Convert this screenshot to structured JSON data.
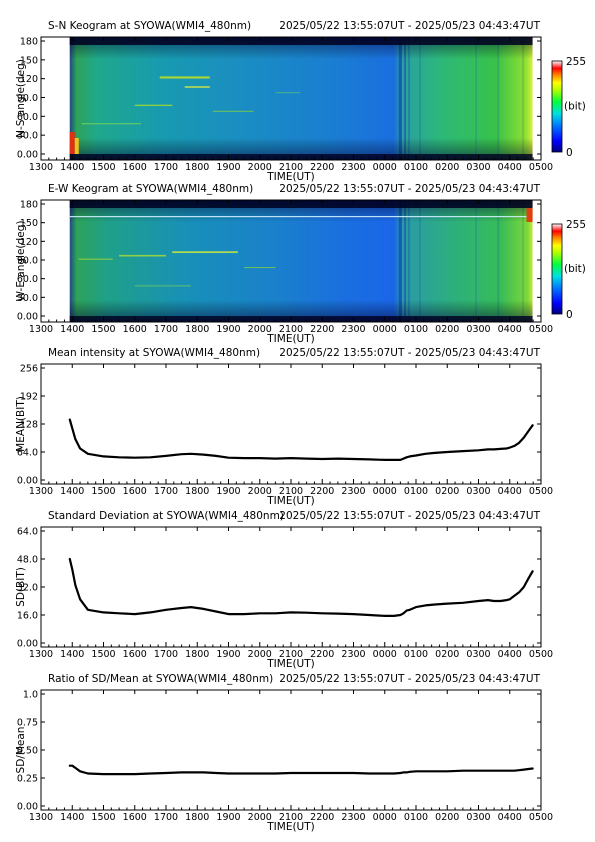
{
  "x_axis": {
    "label": "TIME(UT)",
    "ticks": [
      "1300",
      "1400",
      "1500",
      "1600",
      "1700",
      "1800",
      "1900",
      "2000",
      "2100",
      "2200",
      "2300",
      "0000",
      "0100",
      "0200",
      "0300",
      "0400",
      "0500"
    ]
  },
  "colorbar": {
    "max_label": "255",
    "unit_label": "(bit)",
    "min_label": "0"
  },
  "chart_data": [
    {
      "type": "heatmap",
      "title": "S-N Keogram at SYOWA(WMI4_480nm)",
      "time_range": "2025/05/22 13:55:07UT - 2025/05/23 04:43:47UT",
      "ylabel": "N-S angle(deg)",
      "yticks": [
        "0.00",
        "30.0",
        "60.0",
        "90.0",
        "120",
        "150",
        "180"
      ],
      "ylim": [
        0,
        180
      ],
      "xlabel": "TIME(UT)",
      "colorbar": [
        0,
        255
      ]
    },
    {
      "type": "heatmap",
      "title": "E-W Keogram at SYOWA(WMI4_480nm)",
      "time_range": "2025/05/22 13:55:07UT - 2025/05/23 04:43:47UT",
      "ylabel": "W-E angle(deg)",
      "yticks": [
        "0.00",
        "30.0",
        "60.0",
        "90.0",
        "120",
        "150",
        "180"
      ],
      "ylim": [
        0,
        180
      ],
      "xlabel": "TIME(UT)",
      "colorbar": [
        0,
        255
      ]
    },
    {
      "type": "line",
      "title": "Mean intensity at SYOWA(WMI4_480nm)",
      "time_range": "2025/05/22 13:55:07UT - 2025/05/23 04:43:47UT",
      "ylabel": "MEAN(BIT)",
      "xlabel": "TIME(UT)",
      "yticks": [
        "0.00",
        "64.0",
        "128",
        "192",
        "256"
      ],
      "ylim": [
        0,
        256
      ],
      "x": [
        13.92,
        14.0,
        14.1,
        14.25,
        14.5,
        15.0,
        15.5,
        16.0,
        16.5,
        17.0,
        17.5,
        17.8,
        18.2,
        18.6,
        19.0,
        19.5,
        20.0,
        20.5,
        21.0,
        21.5,
        22.0,
        22.5,
        23.0,
        23.5,
        24.0,
        24.3,
        24.5,
        24.6,
        24.7,
        24.8,
        25.0,
        25.3,
        25.6,
        26.0,
        26.5,
        27.0,
        27.3,
        27.5,
        27.7,
        27.9,
        28.0,
        28.15,
        28.3,
        28.45,
        28.6,
        28.73
      ],
      "y": [
        138,
        118,
        93,
        72,
        60,
        54,
        52,
        51,
        52,
        55,
        59,
        60,
        58,
        55,
        51,
        50,
        50,
        49,
        50,
        49,
        48,
        49,
        48,
        47,
        46,
        46,
        46,
        49,
        52,
        54,
        56,
        60,
        62,
        64,
        66,
        68,
        70,
        70,
        71,
        72,
        74,
        78,
        85,
        97,
        112,
        125
      ]
    },
    {
      "type": "line",
      "title": "Standard Deviation at SYOWA(WMI4_480nm)",
      "time_range": "2025/05/22 13:55:07UT - 2025/05/23 04:43:47UT",
      "ylabel": "SD(BIT)",
      "xlabel": "TIME(UT)",
      "yticks": [
        "0.00",
        "16.0",
        "32.0",
        "48.0",
        "64.0"
      ],
      "ylim": [
        0,
        64
      ],
      "x": [
        13.92,
        14.0,
        14.1,
        14.25,
        14.5,
        15.0,
        15.5,
        16.0,
        16.5,
        17.0,
        17.5,
        17.8,
        18.2,
        18.6,
        19.0,
        19.5,
        20.0,
        20.5,
        21.0,
        21.5,
        22.0,
        22.5,
        23.0,
        23.5,
        24.0,
        24.3,
        24.5,
        24.6,
        24.7,
        24.8,
        25.0,
        25.3,
        25.6,
        26.0,
        26.5,
        27.0,
        27.3,
        27.5,
        27.7,
        27.9,
        28.0,
        28.15,
        28.3,
        28.45,
        28.6,
        28.73
      ],
      "y": [
        48,
        42,
        33,
        25,
        19,
        17.5,
        17,
        16.5,
        17.5,
        19,
        20,
        20.5,
        19.5,
        18,
        16.5,
        16.5,
        17,
        17,
        17.5,
        17.3,
        17,
        16.8,
        16.5,
        16,
        15.5,
        15.5,
        16,
        17,
        18.5,
        19,
        20.5,
        21.5,
        22,
        22.5,
        23,
        24,
        24.5,
        24,
        24,
        24.5,
        25,
        27,
        29,
        32,
        37,
        41
      ]
    },
    {
      "type": "line",
      "title": "Ratio of SD/Mean at SYOWA(WMI4_480nm)",
      "time_range": "2025/05/22 13:55:07UT - 2025/05/23 04:43:47UT",
      "ylabel": "SD/Mean",
      "xlabel": "TIME(UT)",
      "yticks": [
        "0.00",
        "0.25",
        "0.50",
        "0.75",
        "1.0"
      ],
      "ylim": [
        0,
        1
      ],
      "x": [
        13.92,
        14.0,
        14.1,
        14.25,
        14.5,
        15.0,
        15.5,
        16.0,
        16.5,
        17.0,
        17.5,
        17.8,
        18.2,
        18.6,
        19.0,
        19.5,
        20.0,
        20.5,
        21.0,
        21.5,
        22.0,
        22.5,
        23.0,
        23.5,
        24.0,
        24.3,
        24.5,
        24.6,
        24.7,
        24.8,
        25.0,
        25.3,
        25.6,
        26.0,
        26.5,
        27.0,
        27.3,
        27.5,
        27.7,
        27.9,
        28.0,
        28.15,
        28.3,
        28.45,
        28.6,
        28.73
      ],
      "y": [
        0.36,
        0.36,
        0.34,
        0.31,
        0.29,
        0.285,
        0.285,
        0.285,
        0.29,
        0.295,
        0.3,
        0.3,
        0.3,
        0.295,
        0.29,
        0.29,
        0.29,
        0.29,
        0.295,
        0.295,
        0.295,
        0.295,
        0.295,
        0.29,
        0.29,
        0.29,
        0.295,
        0.3,
        0.3,
        0.305,
        0.31,
        0.31,
        0.31,
        0.31,
        0.315,
        0.315,
        0.315,
        0.315,
        0.315,
        0.315,
        0.315,
        0.315,
        0.32,
        0.325,
        0.33,
        0.335
      ]
    }
  ]
}
